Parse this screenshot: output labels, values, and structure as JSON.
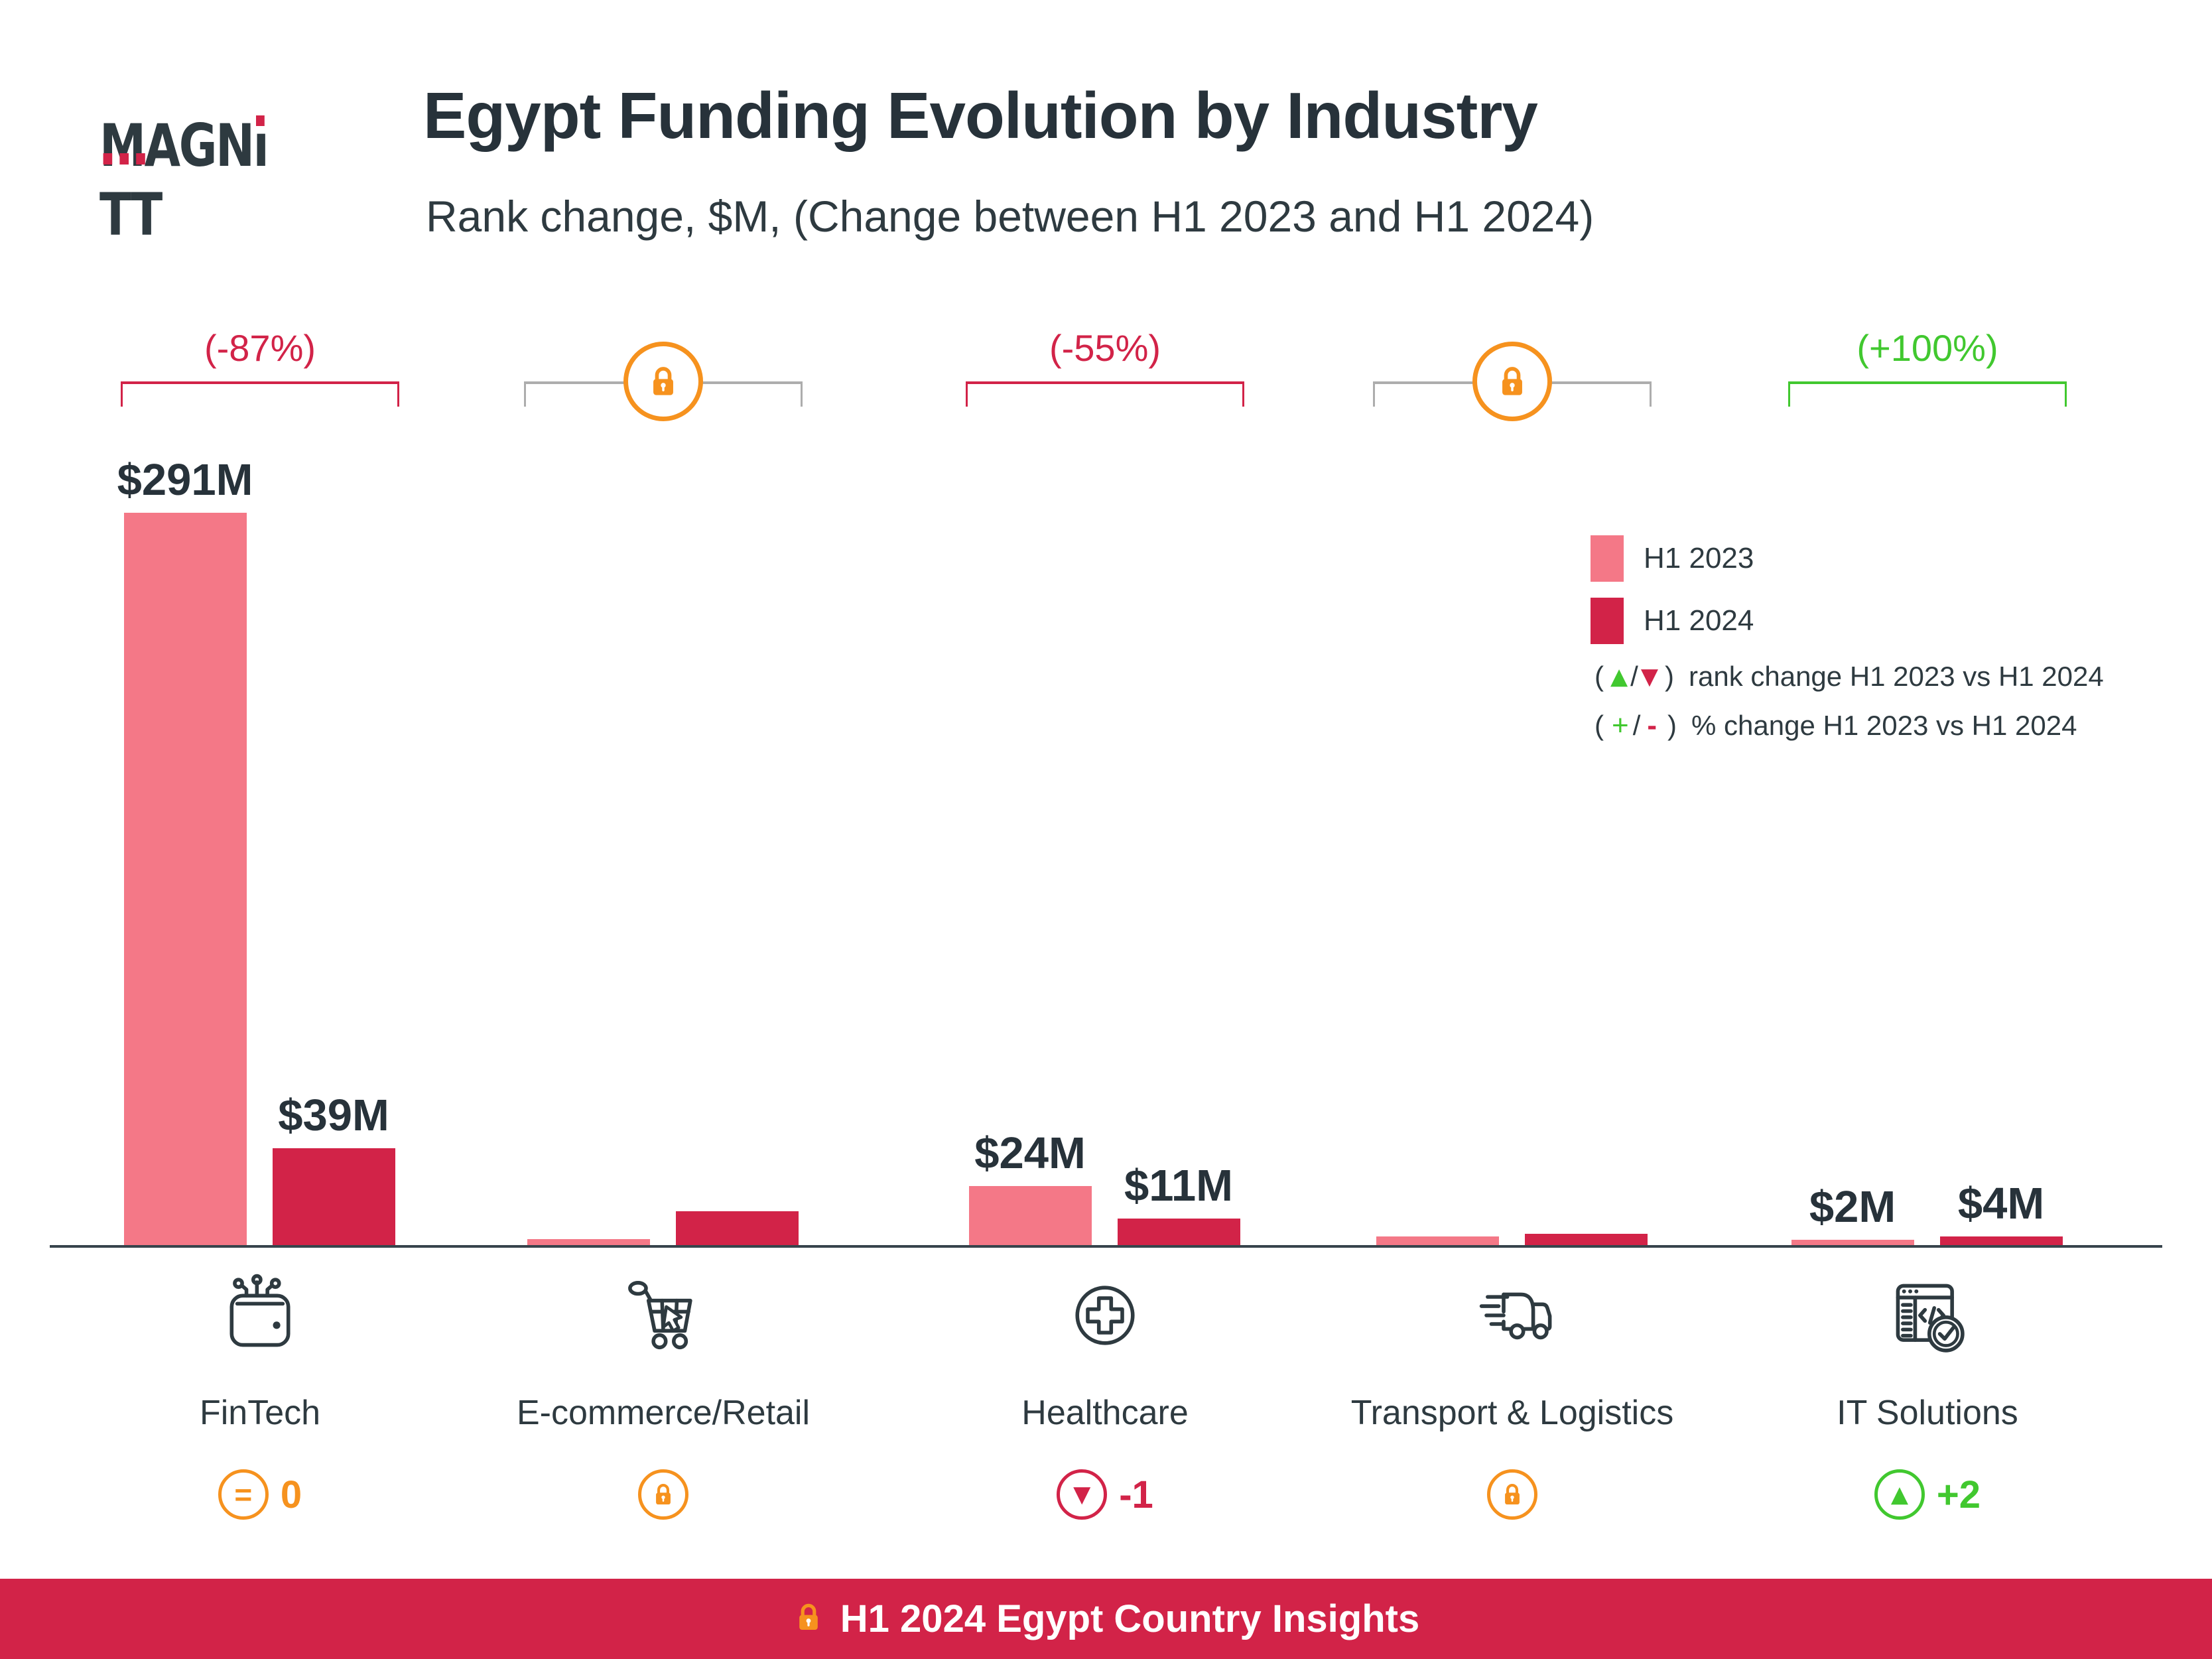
{
  "header": {
    "logo": "MAGNiTT",
    "title": "Egypt Funding Evolution by Industry",
    "subtitle": "Rank change, $M, (Change between H1 2023 and H1 2024)"
  },
  "legend": {
    "items": [
      {
        "series": "h1_2023",
        "label": "H1 2023"
      },
      {
        "series": "h1_2024",
        "label": "H1 2024"
      }
    ],
    "rank_line": {
      "prefix": "(",
      "up": "▲",
      "sep": "/",
      "down": "▼",
      "suffix": ")",
      "label": "rank change H1 2023 vs H1 2024"
    },
    "pct_line": {
      "prefix": "(",
      "plus": "+",
      "sep": "/",
      "minus": "-",
      "suffix": ")",
      "label": "% change H1 2023 vs H1 2024"
    }
  },
  "footer": {
    "label": "H1 2024 Egypt Country Insights"
  },
  "colors": {
    "pink": "#F47887",
    "crimson": "#D22348",
    "green": "#41C82F",
    "orange": "#F6921E",
    "dark": "#2E3A40",
    "gray": "#ADADAD"
  },
  "chart_data": {
    "type": "bar",
    "title": "Egypt Funding Evolution by Industry",
    "subtitle": "Rank change, $M, (Change between H1 2023 and H1 2024)",
    "unit": "$M",
    "series": [
      "H1 2023",
      "H1 2024"
    ],
    "ylim": [
      0,
      300
    ],
    "grid": false,
    "legend_position": "right",
    "categories": [
      {
        "label": "FinTech",
        "icon": "fintech-wallet-icon",
        "values": [
          291,
          39
        ],
        "value_labels": [
          "$291M",
          "$39M"
        ],
        "pct_change": "(-87%)",
        "pct_trend": "down",
        "rank_display": "0",
        "rank_trend": "equal",
        "locked": false
      },
      {
        "label": "E-commerce/Retail",
        "icon": "shopping-cart-icon",
        "values": [
          3,
          14
        ],
        "value_labels": [
          null,
          null
        ],
        "values_estimated": true,
        "pct_change": null,
        "pct_trend": null,
        "rank_display": null,
        "rank_trend": "locked",
        "locked": true
      },
      {
        "label": "Healthcare",
        "icon": "medical-cross-icon",
        "values": [
          24,
          11
        ],
        "value_labels": [
          "$24M",
          "$11M"
        ],
        "pct_change": "(-55%)",
        "pct_trend": "down",
        "rank_display": "-1",
        "rank_trend": "down",
        "locked": false
      },
      {
        "label": "Transport & Logistics",
        "icon": "delivery-truck-icon",
        "values": [
          4,
          5
        ],
        "value_labels": [
          null,
          null
        ],
        "values_estimated": true,
        "pct_change": null,
        "pct_trend": null,
        "rank_display": null,
        "rank_trend": "locked",
        "locked": true
      },
      {
        "label": "IT Solutions",
        "icon": "it-code-window-icon",
        "values": [
          2,
          4
        ],
        "value_labels": [
          "$2M",
          "$4M"
        ],
        "pct_change": "(+100%)",
        "pct_trend": "up",
        "rank_display": "+2",
        "rank_trend": "up",
        "locked": false
      }
    ]
  }
}
